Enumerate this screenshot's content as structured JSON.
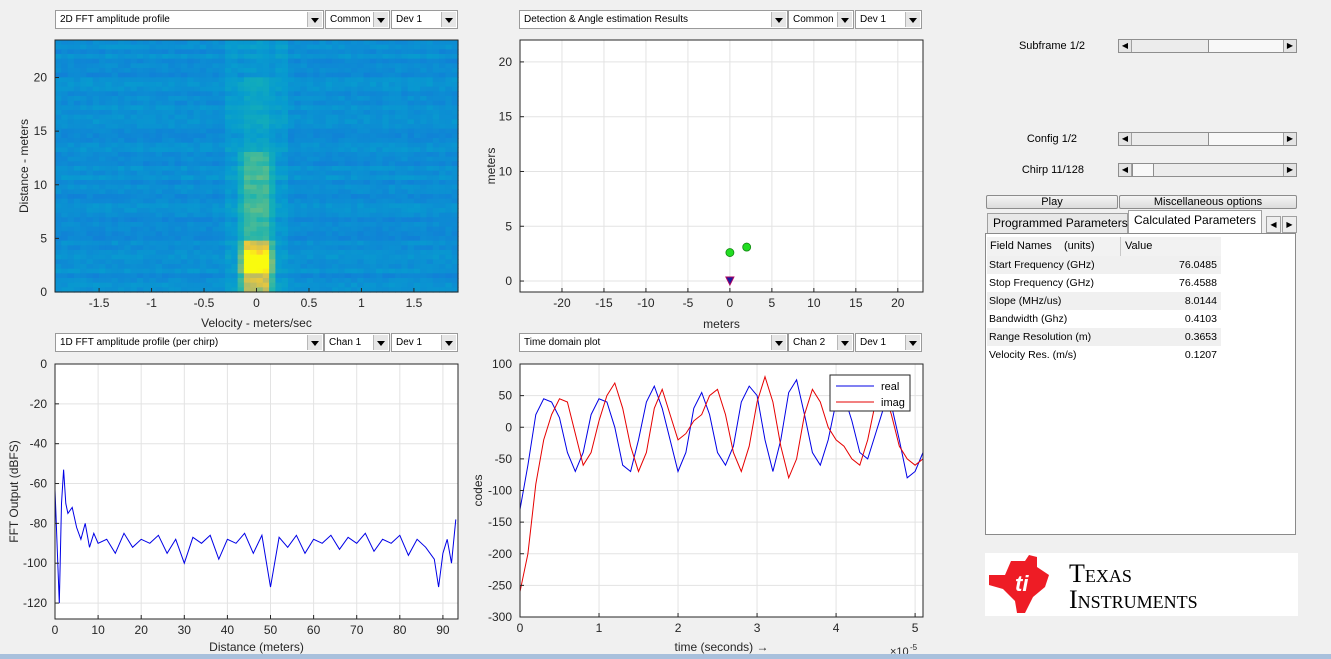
{
  "plots": {
    "p2d": {
      "dropdowns": [
        "2D FFT amplitude profile",
        "Common",
        "Dev 1"
      ],
      "xlabel": "Velocity - meters/sec",
      "ylabel": "Distance - meters",
      "xticks": [
        "-1.5",
        "-1",
        "-0.5",
        "0",
        "0.5",
        "1",
        "1.5"
      ],
      "yticks": [
        "0",
        "5",
        "10",
        "15",
        "20"
      ]
    },
    "det": {
      "dropdowns": [
        "Detection & Angle estimation Results",
        "Common",
        "Dev 1"
      ],
      "xlabel": "meters",
      "ylabel": "meters",
      "xticks": [
        "-20",
        "-15",
        "-10",
        "-5",
        "0",
        "5",
        "10",
        "15",
        "20"
      ],
      "yticks": [
        "0",
        "5",
        "10",
        "15",
        "20"
      ]
    },
    "fft1d": {
      "dropdowns": [
        "1D FFT amplitude profile (per chirp)",
        "Chan 1",
        "Dev 1"
      ],
      "xlabel": "Distance (meters)",
      "ylabel": "FFT Output (dBFS)",
      "xticks": [
        "0",
        "10",
        "20",
        "30",
        "40",
        "50",
        "60",
        "70",
        "80",
        "90"
      ],
      "yticks": [
        "0",
        "-20",
        "-40",
        "-60",
        "-80",
        "-100",
        "-120"
      ]
    },
    "td": {
      "dropdowns": [
        "Time domain plot",
        "Chan 2",
        "Dev 1"
      ],
      "xlabel": "time  (seconds) →",
      "ylabel": "codes",
      "xticks": [
        "0",
        "1",
        "2",
        "3",
        "4",
        "5"
      ],
      "yticks": [
        "100",
        "50",
        "0",
        "-50",
        "-100",
        "-150",
        "-200",
        "-250",
        "-300"
      ],
      "exponent": "×10",
      "exponent_power": "-5",
      "legend": [
        "real",
        "imag"
      ]
    }
  },
  "chart_data": [
    {
      "type": "heatmap",
      "xlabel": "Velocity - meters/sec",
      "ylabel": "Distance - meters",
      "xlim": [
        -1.92,
        1.92
      ],
      "ylim": [
        0,
        23.5
      ],
      "note_peak_at_velocity": 0,
      "peak_distance": 2.7
    },
    {
      "type": "scatter",
      "xlabel": "meters",
      "ylabel": "meters",
      "xlim": [
        -25,
        23
      ],
      "ylim": [
        -1,
        22
      ],
      "points": [
        {
          "x": 0,
          "y": 2.6
        },
        {
          "x": 2,
          "y": 3.1
        }
      ],
      "radar_origin": {
        "x": 0,
        "y": 0
      }
    },
    {
      "type": "line",
      "xlabel": "Distance (meters)",
      "ylabel": "FFT Output (dBFS)",
      "xlim": [
        0,
        93.5
      ],
      "ylim": [
        -128,
        0
      ],
      "series": [
        {
          "x": [
            0,
            1,
            1.5,
            2,
            2.5,
            3,
            4,
            5,
            6,
            7,
            8,
            9,
            10,
            12,
            14,
            16,
            18,
            20,
            22,
            24,
            26,
            28,
            30,
            32,
            34,
            36,
            38,
            40,
            42,
            44,
            46,
            48,
            50,
            52,
            54,
            56,
            58,
            60,
            62,
            64,
            66,
            68,
            70,
            72,
            74,
            76,
            78,
            80,
            82,
            84,
            86,
            88,
            89,
            90,
            91,
            92,
            93
          ],
          "values": [
            -63,
            -120,
            -70,
            -53,
            -70,
            -75,
            -72,
            -82,
            -88,
            -80,
            -92,
            -85,
            -90,
            -88,
            -95,
            -85,
            -92,
            -88,
            -90,
            -86,
            -95,
            -88,
            -100,
            -87,
            -90,
            -86,
            -98,
            -88,
            -90,
            -85,
            -95,
            -86,
            -112,
            -87,
            -92,
            -86,
            -95,
            -88,
            -90,
            -86,
            -93,
            -87,
            -90,
            -85,
            -94,
            -88,
            -90,
            -86,
            -96,
            -88,
            -92,
            -98,
            -112,
            -95,
            -88,
            -100,
            -78
          ]
        }
      ]
    },
    {
      "type": "line",
      "xlabel": "time  (seconds) →",
      "ylabel": "codes",
      "xlim": [
        0,
        5.1
      ],
      "ylim": [
        -300,
        100
      ],
      "series": [
        {
          "name": "real",
          "color": "#0000e6",
          "x": [
            0,
            0.1,
            0.2,
            0.3,
            0.4,
            0.5,
            0.6,
            0.7,
            0.8,
            0.9,
            1.0,
            1.1,
            1.2,
            1.3,
            1.4,
            1.5,
            1.6,
            1.7,
            1.8,
            1.9,
            2.0,
            2.1,
            2.2,
            2.3,
            2.4,
            2.5,
            2.6,
            2.7,
            2.8,
            2.9,
            3.0,
            3.1,
            3.2,
            3.3,
            3.4,
            3.5,
            3.6,
            3.7,
            3.8,
            3.9,
            4.0,
            4.1,
            4.2,
            4.3,
            4.4,
            4.5,
            4.6,
            4.7,
            4.8,
            4.9,
            5.0,
            5.1
          ],
          "values": [
            -130,
            -60,
            20,
            45,
            40,
            15,
            -40,
            -70,
            -40,
            20,
            45,
            40,
            0,
            -60,
            -70,
            -20,
            40,
            65,
            30,
            -20,
            -70,
            -40,
            30,
            55,
            20,
            -40,
            -60,
            -30,
            40,
            65,
            50,
            -20,
            -70,
            -20,
            55,
            75,
            20,
            -40,
            -60,
            -20,
            40,
            50,
            10,
            -40,
            -50,
            -10,
            30,
            35,
            -20,
            -80,
            -70,
            -40
          ]
        },
        {
          "name": "imag",
          "color": "#e60000",
          "x": [
            0,
            0.1,
            0.2,
            0.3,
            0.4,
            0.5,
            0.6,
            0.7,
            0.8,
            0.9,
            1.0,
            1.1,
            1.2,
            1.3,
            1.4,
            1.5,
            1.6,
            1.7,
            1.8,
            1.9,
            2.0,
            2.1,
            2.2,
            2.3,
            2.4,
            2.5,
            2.6,
            2.7,
            2.8,
            2.9,
            3.0,
            3.1,
            3.2,
            3.3,
            3.4,
            3.5,
            3.6,
            3.7,
            3.8,
            3.9,
            4.0,
            4.1,
            4.2,
            4.3,
            4.4,
            4.5,
            4.6,
            4.7,
            4.8,
            4.9,
            5.0,
            5.1
          ],
          "values": [
            -260,
            -200,
            -90,
            -20,
            20,
            45,
            40,
            -10,
            -60,
            -40,
            10,
            50,
            70,
            30,
            -30,
            -70,
            -40,
            30,
            60,
            20,
            -20,
            -10,
            10,
            20,
            50,
            60,
            20,
            -40,
            -70,
            -30,
            40,
            80,
            40,
            -30,
            -80,
            -50,
            20,
            60,
            40,
            0,
            -20,
            -30,
            -50,
            -60,
            -20,
            40,
            60,
            20,
            -30,
            -50,
            -60,
            -50
          ]
        }
      ]
    }
  ],
  "controls": {
    "subframe": {
      "label": "Subframe 1/2",
      "position": 0.5
    },
    "config": {
      "label": "Config 1/2",
      "position": 0.5
    },
    "chirp": {
      "label": "Chirp 11/128",
      "position": 0.08
    },
    "play": "Play",
    "misc": "Miscellaneous options"
  },
  "tabs": {
    "programmed": "Programmed Parameters",
    "calculated": "Calculated Parameters"
  },
  "params": {
    "headers": [
      "Field Names    (units)",
      "Value"
    ],
    "rows": [
      {
        "name": "Start Frequency (GHz)",
        "value": "76.0485"
      },
      {
        "name": "Stop Frequency (GHz)",
        "value": "76.4588"
      },
      {
        "name": "Slope (MHz/us)",
        "value": "8.0144"
      },
      {
        "name": "Bandwidth (Ghz)",
        "value": "0.4103"
      },
      {
        "name": "Range Resolution (m)",
        "value": "0.3653"
      },
      {
        "name": "Velocity Res. (m/s)",
        "value": "0.1207"
      }
    ]
  },
  "logo": {
    "line1": "Texas",
    "line2": "Instruments",
    "color": "#ee1c25"
  }
}
